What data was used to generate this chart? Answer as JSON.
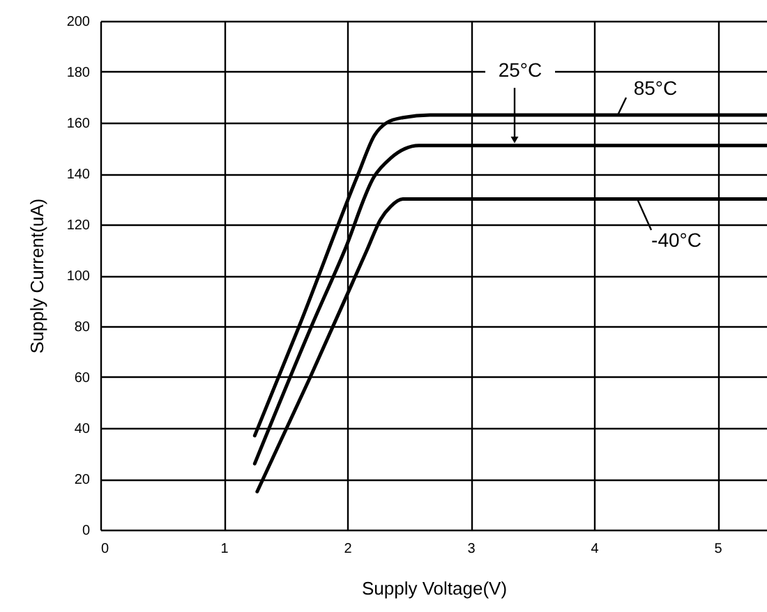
{
  "chart_data": {
    "type": "line",
    "xlabel": "Supply Voltage(V)",
    "ylabel": "Supply Current(uA)",
    "xlim": [
      0,
      5.4
    ],
    "xticks": [
      0,
      1,
      2,
      3,
      4,
      5
    ],
    "ylim": [
      0,
      200
    ],
    "yticks": [
      0,
      20,
      40,
      60,
      80,
      100,
      120,
      140,
      160,
      180,
      200
    ],
    "grid": true,
    "series": [
      {
        "name": "85°C",
        "color": "#000000",
        "x": [
          1.25,
          1.61,
          2.09,
          2.22,
          2.32,
          2.45,
          2.67,
          5.4
        ],
        "values": [
          37,
          80,
          140,
          155,
          160,
          162,
          163,
          163
        ]
      },
      {
        "name": "25°C",
        "color": "#000000",
        "x": [
          1.25,
          1.71,
          1.98,
          2.22,
          2.35,
          2.58,
          5.4
        ],
        "values": [
          26,
          80,
          110,
          139,
          146,
          151,
          151
        ]
      },
      {
        "name": "-40°C",
        "color": "#000000",
        "x": [
          1.27,
          1.7,
          2.16,
          2.27,
          2.35,
          2.45,
          5.4
        ],
        "values": [
          15,
          60,
          110,
          122,
          127,
          130,
          130
        ]
      }
    ]
  }
}
